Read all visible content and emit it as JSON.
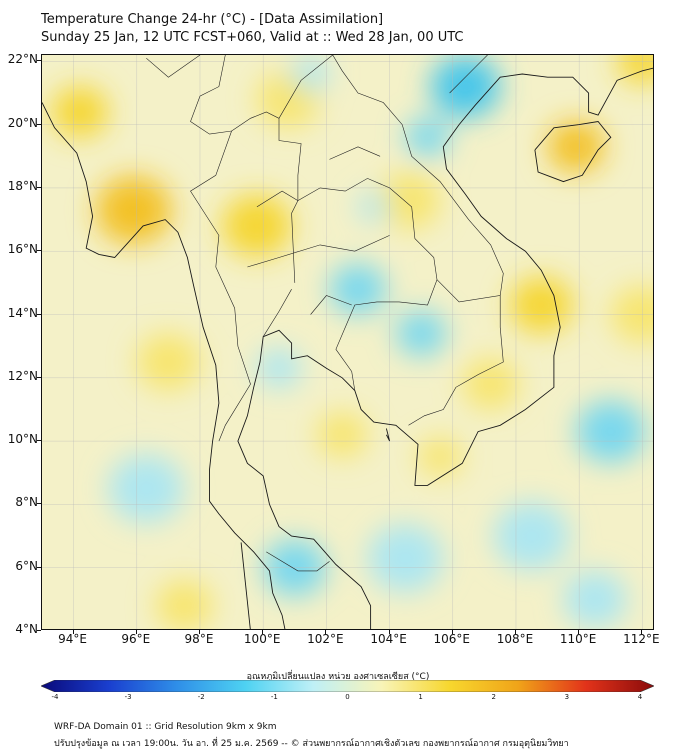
{
  "title": {
    "line1": "Temperature Change 24-hr (°C) - [Data Assimilation]",
    "line2": "Sunday 25 Jan, 12 UTC FCST+060, Valid at :: Wed 28 Jan, 00 UTC"
  },
  "axes": {
    "lat_labels": [
      "22°N",
      "20°N",
      "18°N",
      "16°N",
      "14°N",
      "12°N",
      "10°N",
      "8°N",
      "6°N",
      "4°N"
    ],
    "lon_labels": [
      "94°E",
      "96°E",
      "98°E",
      "100°E",
      "102°E",
      "104°E",
      "106°E",
      "108°E",
      "110°E",
      "112°E"
    ],
    "lat_values": [
      22,
      20,
      18,
      16,
      14,
      12,
      10,
      8,
      6,
      4
    ],
    "lon_values": [
      94,
      96,
      98,
      100,
      102,
      104,
      106,
      108,
      110,
      112
    ],
    "lat_range": [
      4,
      22.2
    ],
    "lon_range": [
      93,
      112.4
    ]
  },
  "colorbar": {
    "label": "อุณหภูมิเปลี่ยนแปลง หน่วย องศาเซลเซียส (°C)",
    "ticks": [
      "-4",
      "-3",
      "-2",
      "-1",
      "0",
      "1",
      "2",
      "3",
      "4"
    ],
    "tick_values": [
      -4,
      -3,
      -2,
      -1,
      0,
      1,
      2,
      3,
      4
    ],
    "colors": [
      "#0a0a7a",
      "#1a3fcf",
      "#2f8fe8",
      "#4ed2f2",
      "#bff0f6",
      "#f8f4b8",
      "#f7d72e",
      "#f0a419",
      "#e2331a",
      "#8a0b0b"
    ]
  },
  "footer": {
    "line1": "WRF-DA Domain 01 :: Grid Resolution 9km x 9km",
    "line2": "ปรับปรุงข้อมูล ณ เวลา 19:00น. วัน อา. ที่ 25 ม.ค. 2569 -- © ส่วนพยากรณ์อากาศเชิงตัวเลข กองพยากรณ์อากาศ กรมอุตุนิยมวิทยา"
  },
  "field_blobs": [
    {
      "lon": 95.9,
      "lat": 17.3,
      "value": 2.1,
      "spread": 1.2
    },
    {
      "lon": 94.2,
      "lat": 20.4,
      "value": 1.4,
      "spread": 0.9
    },
    {
      "lon": 109.9,
      "lat": 19.3,
      "value": 2.0,
      "spread": 0.9
    },
    {
      "lon": 112.0,
      "lat": 22.0,
      "value": 1.5,
      "spread": 0.8
    },
    {
      "lon": 99.8,
      "lat": 16.8,
      "value": 1.6,
      "spread": 1.1
    },
    {
      "lon": 104.6,
      "lat": 17.6,
      "value": 1.2,
      "spread": 1.0
    },
    {
      "lon": 108.8,
      "lat": 14.3,
      "value": 1.5,
      "spread": 1.0
    },
    {
      "lon": 100.8,
      "lat": 20.8,
      "value": 1.0,
      "spread": 1.0
    },
    {
      "lon": 107.2,
      "lat": 11.8,
      "value": 1.2,
      "spread": 0.9
    },
    {
      "lon": 102.5,
      "lat": 10.2,
      "value": 1.0,
      "spread": 0.8
    },
    {
      "lon": 97.0,
      "lat": 12.5,
      "value": 0.9,
      "spread": 1.0
    },
    {
      "lon": 105.6,
      "lat": 9.5,
      "value": 0.9,
      "spread": 0.7
    },
    {
      "lon": 103.0,
      "lat": 14.8,
      "value": -1.3,
      "spread": 0.9
    },
    {
      "lon": 105.0,
      "lat": 13.4,
      "value": -1.4,
      "spread": 0.8
    },
    {
      "lon": 106.4,
      "lat": 21.2,
      "value": -1.8,
      "spread": 1.1
    },
    {
      "lon": 105.2,
      "lat": 19.6,
      "value": -1.4,
      "spread": 0.7
    },
    {
      "lon": 101.0,
      "lat": 6.0,
      "value": -1.5,
      "spread": 1.0
    },
    {
      "lon": 100.5,
      "lat": 12.3,
      "value": -1.0,
      "spread": 0.7
    },
    {
      "lon": 96.3,
      "lat": 8.5,
      "value": -0.9,
      "spread": 1.2
    },
    {
      "lon": 111.0,
      "lat": 10.3,
      "value": -1.1,
      "spread": 1.1
    },
    {
      "lon": 104.5,
      "lat": 6.3,
      "value": -0.8,
      "spread": 1.2
    },
    {
      "lon": 108.5,
      "lat": 7.0,
      "value": -0.7,
      "spread": 1.2
    },
    {
      "lon": 110.5,
      "lat": 5.0,
      "value": -0.6,
      "spread": 1.0
    },
    {
      "lon": 103.5,
      "lat": 17.4,
      "value": -0.8,
      "spread": 0.5
    },
    {
      "lon": 101.5,
      "lat": 21.6,
      "value": -0.7,
      "spread": 0.6
    },
    {
      "lon": 97.5,
      "lat": 4.8,
      "value": 0.6,
      "spread": 0.9
    },
    {
      "lon": 112.0,
      "lat": 14.0,
      "value": 0.6,
      "spread": 1.0
    }
  ],
  "coastlines": [
    [
      [
        93.0,
        20.7
      ],
      [
        93.4,
        19.9
      ],
      [
        94.1,
        19.1
      ],
      [
        94.4,
        18.2
      ],
      [
        94.6,
        17.1
      ],
      [
        94.4,
        16.1
      ],
      [
        94.8,
        15.9
      ],
      [
        95.3,
        15.8
      ],
      [
        96.2,
        16.8
      ],
      [
        96.9,
        17.0
      ],
      [
        97.3,
        16.6
      ],
      [
        97.6,
        15.8
      ],
      [
        97.8,
        14.9
      ],
      [
        98.1,
        13.6
      ],
      [
        98.5,
        12.4
      ],
      [
        98.6,
        11.2
      ],
      [
        98.4,
        10.0
      ],
      [
        98.3,
        9.1
      ],
      [
        98.3,
        8.1
      ],
      [
        98.6,
        7.7
      ],
      [
        99.1,
        7.1
      ],
      [
        99.7,
        6.5
      ],
      [
        100.2,
        5.9
      ],
      [
        100.3,
        5.2
      ],
      [
        100.6,
        4.5
      ],
      [
        100.7,
        4.0
      ]
    ],
    [
      [
        99.6,
        4.0
      ],
      [
        99.3,
        6.8
      ]
    ],
    [
      [
        103.4,
        4.0
      ],
      [
        103.4,
        4.8
      ],
      [
        103.1,
        5.4
      ],
      [
        102.3,
        6.1
      ],
      [
        101.6,
        6.9
      ],
      [
        100.9,
        7.0
      ],
      [
        100.5,
        7.3
      ],
      [
        100.2,
        8.0
      ],
      [
        100.0,
        8.9
      ],
      [
        99.5,
        9.3
      ],
      [
        99.2,
        10.0
      ],
      [
        99.5,
        10.8
      ],
      [
        99.7,
        11.7
      ],
      [
        99.9,
        12.5
      ],
      [
        100.0,
        13.3
      ],
      [
        100.5,
        13.5
      ],
      [
        100.9,
        13.1
      ],
      [
        100.9,
        12.6
      ],
      [
        101.4,
        12.7
      ],
      [
        102.0,
        12.3
      ],
      [
        102.5,
        12.0
      ],
      [
        102.9,
        11.6
      ],
      [
        103.1,
        11.0
      ],
      [
        103.5,
        10.6
      ],
      [
        104.2,
        10.5
      ],
      [
        104.9,
        9.9
      ],
      [
        104.8,
        8.6
      ],
      [
        105.2,
        8.6
      ],
      [
        106.3,
        9.3
      ],
      [
        106.8,
        10.3
      ],
      [
        107.5,
        10.5
      ],
      [
        108.3,
        11.0
      ],
      [
        109.2,
        11.7
      ],
      [
        109.2,
        12.7
      ],
      [
        109.4,
        13.6
      ],
      [
        109.2,
        14.6
      ],
      [
        108.8,
        15.4
      ],
      [
        108.3,
        16.0
      ],
      [
        107.7,
        16.4
      ],
      [
        106.9,
        17.1
      ],
      [
        106.4,
        17.8
      ],
      [
        105.8,
        18.6
      ],
      [
        105.7,
        19.3
      ],
      [
        106.2,
        20.0
      ],
      [
        106.7,
        20.6
      ],
      [
        107.5,
        21.5
      ],
      [
        108.2,
        21.6
      ],
      [
        109.0,
        21.5
      ],
      [
        109.8,
        21.5
      ],
      [
        110.3,
        21.0
      ],
      [
        110.3,
        20.4
      ],
      [
        110.6,
        20.3
      ],
      [
        111.2,
        21.4
      ],
      [
        112.0,
        21.7
      ],
      [
        112.4,
        21.8
      ]
    ],
    [
      [
        108.6,
        19.2
      ],
      [
        108.7,
        18.5
      ],
      [
        109.5,
        18.2
      ],
      [
        110.1,
        18.4
      ],
      [
        110.6,
        19.2
      ],
      [
        111.0,
        19.6
      ],
      [
        110.6,
        20.1
      ],
      [
        110.0,
        20.0
      ],
      [
        109.2,
        19.9
      ],
      [
        108.6,
        19.2
      ]
    ],
    [
      [
        103.9,
        10.4
      ],
      [
        104.0,
        10.0
      ],
      [
        103.9,
        10.2
      ]
    ]
  ],
  "borders": [
    [
      [
        98.8,
        22.2
      ],
      [
        98.6,
        21.2
      ],
      [
        98.0,
        20.9
      ],
      [
        97.7,
        20.1
      ],
      [
        98.3,
        19.7
      ],
      [
        99.0,
        19.8
      ],
      [
        99.6,
        20.2
      ],
      [
        100.1,
        20.4
      ],
      [
        100.5,
        20.2
      ],
      [
        100.5,
        19.5
      ],
      [
        101.2,
        19.4
      ],
      [
        101.1,
        18.4
      ],
      [
        101.1,
        17.6
      ],
      [
        101.8,
        18.0
      ],
      [
        102.6,
        17.9
      ],
      [
        103.3,
        18.3
      ],
      [
        104.0,
        18.0
      ],
      [
        104.7,
        17.4
      ],
      [
        104.8,
        16.4
      ],
      [
        105.4,
        15.8
      ],
      [
        105.5,
        15.1
      ],
      [
        105.2,
        14.3
      ],
      [
        104.3,
        14.4
      ],
      [
        103.6,
        14.4
      ],
      [
        102.9,
        14.3
      ],
      [
        102.6,
        13.6
      ],
      [
        102.3,
        12.9
      ],
      [
        102.8,
        12.2
      ],
      [
        102.9,
        11.6
      ]
    ],
    [
      [
        99.0,
        19.8
      ],
      [
        98.5,
        18.4
      ],
      [
        97.7,
        17.9
      ],
      [
        98.6,
        16.5
      ],
      [
        98.5,
        15.5
      ],
      [
        99.1,
        14.2
      ],
      [
        99.2,
        13.0
      ],
      [
        99.6,
        11.8
      ],
      [
        98.8,
        10.5
      ],
      [
        98.6,
        10.0
      ]
    ],
    [
      [
        101.1,
        17.6
      ],
      [
        100.9,
        17.2
      ],
      [
        101.0,
        15.0
      ]
    ],
    [
      [
        100.5,
        20.2
      ],
      [
        101.2,
        21.4
      ],
      [
        102.2,
        22.2
      ]
    ],
    [
      [
        102.2,
        22.2
      ],
      [
        102.5,
        21.7
      ],
      [
        103.0,
        21.0
      ],
      [
        103.8,
        20.7
      ],
      [
        104.4,
        20.0
      ],
      [
        104.7,
        19.0
      ],
      [
        105.6,
        18.2
      ],
      [
        106.5,
        17.0
      ],
      [
        107.2,
        16.2
      ],
      [
        107.6,
        15.3
      ],
      [
        107.5,
        14.6
      ]
    ],
    [
      [
        105.5,
        15.1
      ],
      [
        106.2,
        14.4
      ],
      [
        107.5,
        14.6
      ],
      [
        107.5,
        13.6
      ],
      [
        107.6,
        12.5
      ],
      [
        106.8,
        12.1
      ],
      [
        106.1,
        11.7
      ],
      [
        105.7,
        11.0
      ],
      [
        105.1,
        10.8
      ],
      [
        104.6,
        10.5
      ]
    ],
    [
      [
        100.1,
        6.5
      ],
      [
        101.1,
        5.9
      ],
      [
        101.7,
        5.9
      ],
      [
        102.1,
        6.2
      ]
    ],
    [
      [
        102.8,
        14.3
      ],
      [
        102.0,
        14.6
      ],
      [
        101.5,
        14.0
      ]
    ],
    [
      [
        99.5,
        15.5
      ],
      [
        100.5,
        15.8
      ],
      [
        101.8,
        16.2
      ],
      [
        102.9,
        16.0
      ],
      [
        104.0,
        16.5
      ]
    ],
    [
      [
        99.8,
        17.4
      ],
      [
        100.6,
        17.9
      ],
      [
        101.1,
        17.6
      ]
    ],
    [
      [
        102.1,
        18.9
      ],
      [
        103.0,
        19.3
      ],
      [
        103.7,
        19.0
      ]
    ],
    [
      [
        105.9,
        21.0
      ],
      [
        106.6,
        21.7
      ],
      [
        107.1,
        22.2
      ]
    ],
    [
      [
        100.0,
        13.3
      ],
      [
        100.5,
        14.1
      ],
      [
        100.9,
        14.8
      ]
    ],
    [
      [
        98.0,
        22.2
      ],
      [
        97.0,
        21.5
      ],
      [
        96.3,
        22.1
      ]
    ]
  ]
}
